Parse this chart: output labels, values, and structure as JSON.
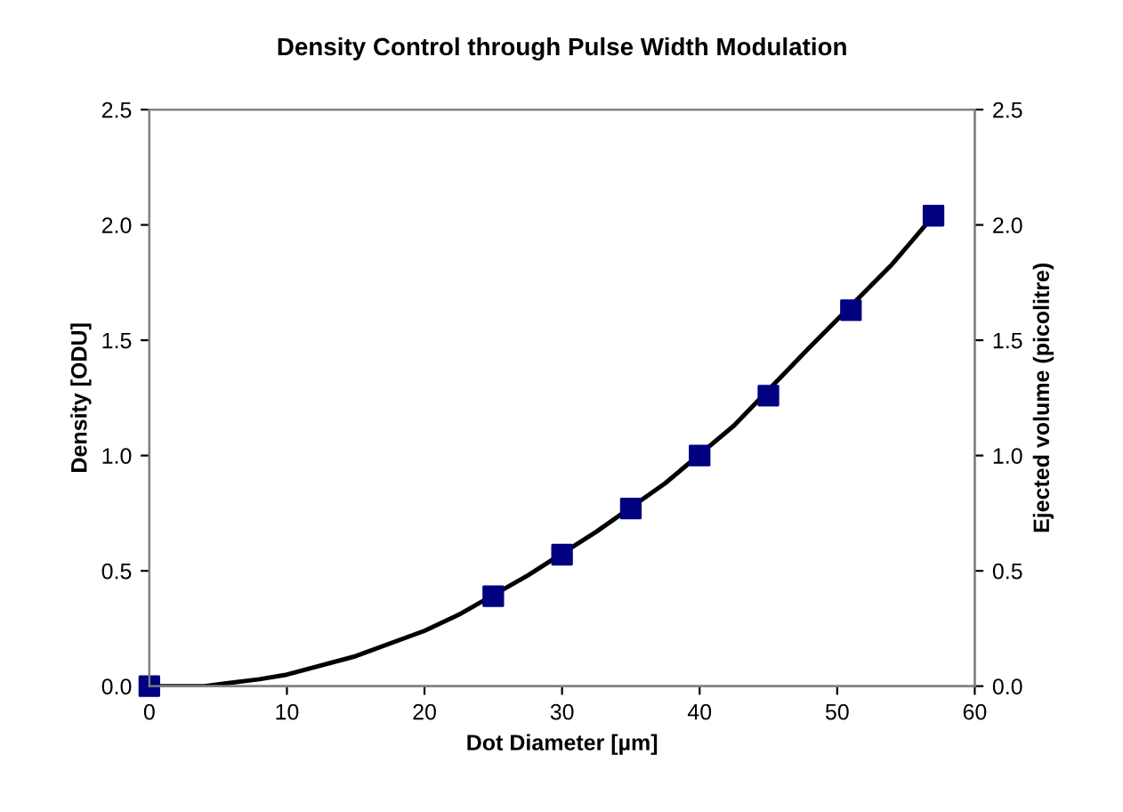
{
  "chart_data": {
    "type": "scatter",
    "title": "Density Control through Pulse Width Modulation",
    "xlabel": "Dot Diameter [µm]",
    "ylabel": "Density [ODU]",
    "y2label": "Ejected volume (picolitre)",
    "series": [
      {
        "type": "line",
        "color": "#000000",
        "marker": "none",
        "line_style": "solid",
        "x": [
          0,
          4,
          8,
          10,
          15,
          20,
          22.5,
          27.5,
          32.5,
          37.5,
          42.5,
          48,
          54,
          57
        ],
        "values": [
          0,
          0,
          0.03,
          0.05,
          0.13,
          0.24,
          0.31,
          0.48,
          0.67,
          0.88,
          1.13,
          1.47,
          1.83,
          2.04
        ]
      },
      {
        "color": "#000080",
        "marker": "square",
        "x": [
          0,
          25,
          30,
          35,
          40,
          45,
          51,
          57
        ],
        "values": [
          0,
          0.39,
          0.57,
          0.77,
          1.0,
          1.26,
          1.63,
          2.04
        ]
      }
    ],
    "xlim": [
      0,
      60
    ],
    "xticks": [
      0,
      10,
      20,
      30,
      40,
      50,
      60
    ],
    "ylim": [
      0,
      2.5
    ],
    "yticks": [
      {
        "value": 0,
        "label": "0.0"
      },
      {
        "value": 0.5,
        "label": "0.5"
      },
      {
        "value": 1,
        "label": "1.0"
      },
      {
        "value": 1.5,
        "label": "1.5"
      },
      {
        "value": 2,
        "label": "2.0"
      },
      {
        "value": 2.5,
        "label": "2.5"
      }
    ],
    "y2lim": [
      0,
      2.5
    ],
    "y2ticks": [
      {
        "value": 0,
        "label": "0.0"
      },
      {
        "value": 0.5,
        "label": "0.5"
      },
      {
        "value": 1,
        "label": "1.0"
      },
      {
        "value": 1.5,
        "label": "1.5"
      },
      {
        "value": 2,
        "label": "2.0"
      },
      {
        "value": 2.5,
        "label": "2.5"
      }
    ],
    "grid": false,
    "legend": false
  }
}
